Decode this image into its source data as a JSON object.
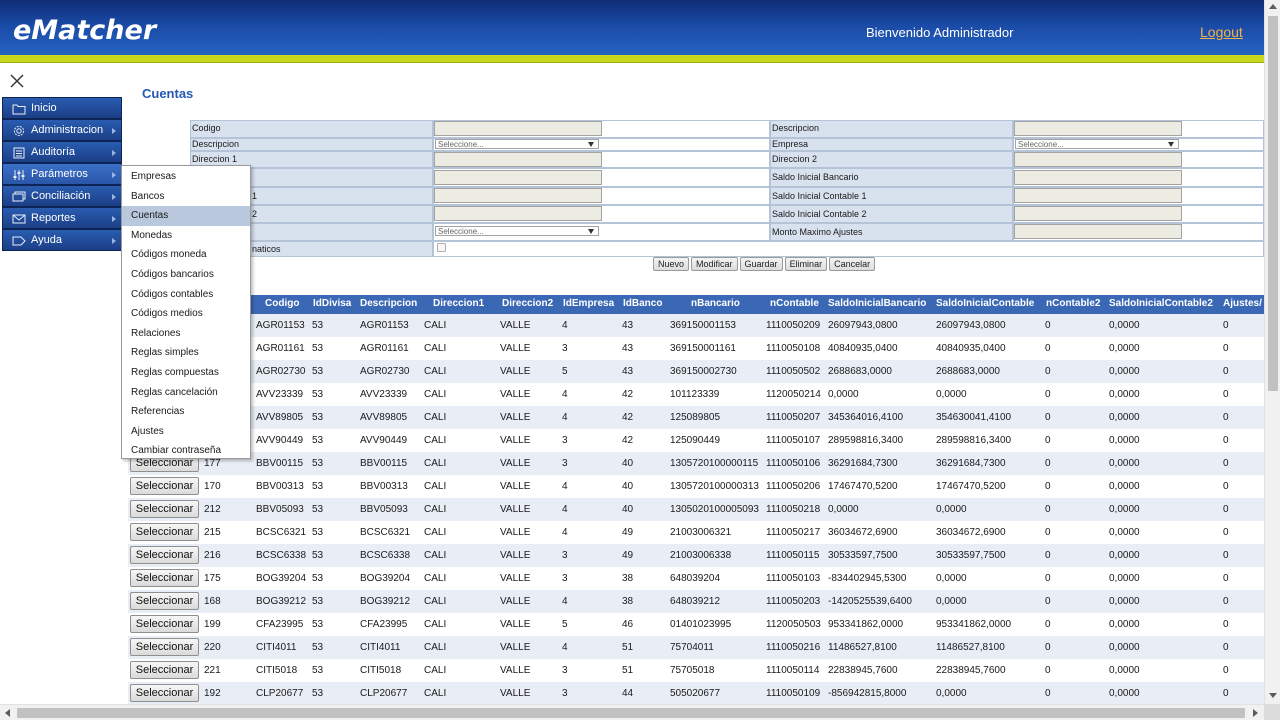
{
  "header": {
    "logo": "eMatcher",
    "welcome": "Bienvenido Administrador",
    "logout": "Logout"
  },
  "sidebar": {
    "items": [
      {
        "label": "Inicio",
        "icon": "folder-icon"
      },
      {
        "label": "Administracion",
        "icon": "gear-icon"
      },
      {
        "label": "Auditoría",
        "icon": "list-icon"
      },
      {
        "label": "Parámetros",
        "icon": "sliders-icon"
      },
      {
        "label": "Conciliación",
        "icon": "cards-icon"
      },
      {
        "label": "Reportes",
        "icon": "mail-icon"
      },
      {
        "label": "Ayuda",
        "icon": "tag-icon"
      }
    ]
  },
  "submenu": {
    "items": [
      "Empresas",
      "Bancos",
      "Cuentas",
      "Monedas",
      "Códigos moneda",
      "Códigos bancarios",
      "Códigos contables",
      "Códigos medios",
      "Relaciones",
      "Reglas simples",
      "Reglas compuestas",
      "Reglas cancelación",
      "Referencias",
      "Ajustes",
      "Cambiar contraseña"
    ],
    "selected": "Cuentas"
  },
  "page": {
    "title": "Cuentas"
  },
  "form": {
    "codigo": "Codigo",
    "descripcion": "Descripcion",
    "descripcion2": "Descripcion",
    "empresa": "Empresa",
    "direccion1": "Direccion 1",
    "direccion2": "Direccion 2",
    "saldo_inicial_bancario": "Saldo Inicial Bancario",
    "label_r5_tail": "1",
    "saldo_inicial_contable1": "Saldo Inicial Contable 1",
    "label_r6_tail": "2",
    "saldo_inicial_contable2": "Saldo Inicial Contable 2",
    "monto_maximo_ajustes": "Monto Maximo Ajustes",
    "label_r8_tail": "naticos",
    "select_placeholder": "Seleccione..."
  },
  "buttons": {
    "nuevo": "Nuevo",
    "modificar": "Modificar",
    "guardar": "Guardar",
    "eliminar": "Eliminar",
    "cancelar": "Cancelar",
    "seleccionar": "Seleccionar"
  },
  "grid": {
    "columns": [
      "Codigo",
      "IdDivisa",
      "Descripcion",
      "Direccion1",
      "Direccion2",
      "IdEmpresa",
      "IdBanco",
      "nBancario",
      "nContable",
      "SaldoInicialBancario",
      "SaldoInicialContable",
      "nContable2",
      "SaldoInicialContable2",
      "Ajustes/"
    ],
    "rows": [
      {
        "id": "",
        "codigo": "AGR01153",
        "divisa": "53",
        "desc": "AGR01153",
        "dir1": "CALI",
        "dir2": "VALLE",
        "emp": "4",
        "banco": "43",
        "nbanc": "369150001153",
        "ncont": "1110050209",
        "sib": "26097943,0800",
        "sic": "26097943,0800",
        "nc2": "0",
        "sic2": "0,0000",
        "aj": "0"
      },
      {
        "id": "",
        "codigo": "AGR01161",
        "divisa": "53",
        "desc": "AGR01161",
        "dir1": "CALI",
        "dir2": "VALLE",
        "emp": "3",
        "banco": "43",
        "nbanc": "369150001161",
        "ncont": "1110050108",
        "sib": "40840935,0400",
        "sic": "40840935,0400",
        "nc2": "0",
        "sic2": "0,0000",
        "aj": "0"
      },
      {
        "id": "",
        "codigo": "AGR02730",
        "divisa": "53",
        "desc": "AGR02730",
        "dir1": "CALI",
        "dir2": "VALLE",
        "emp": "5",
        "banco": "43",
        "nbanc": "369150002730",
        "ncont": "1110050502",
        "sib": "2688683,0000",
        "sic": "2688683,0000",
        "nc2": "0",
        "sic2": "0,0000",
        "aj": "0"
      },
      {
        "id": "",
        "codigo": "AVV23339",
        "divisa": "53",
        "desc": "AVV23339",
        "dir1": "CALI",
        "dir2": "VALLE",
        "emp": "4",
        "banco": "42",
        "nbanc": "101123339",
        "ncont": "1120050214",
        "sib": "0,0000",
        "sic": "0,0000",
        "nc2": "0",
        "sic2": "0,0000",
        "aj": "0"
      },
      {
        "id": "",
        "codigo": "AVV89805",
        "divisa": "53",
        "desc": "AVV89805",
        "dir1": "CALI",
        "dir2": "VALLE",
        "emp": "4",
        "banco": "42",
        "nbanc": "125089805",
        "ncont": "1110050207",
        "sib": "345364016,4100",
        "sic": "354630041,4100",
        "nc2": "0",
        "sic2": "0,0000",
        "aj": "0"
      },
      {
        "id": "",
        "codigo": "AVV90449",
        "divisa": "53",
        "desc": "AVV90449",
        "dir1": "CALI",
        "dir2": "VALLE",
        "emp": "3",
        "banco": "42",
        "nbanc": "125090449",
        "ncont": "1110050107",
        "sib": "289598816,3400",
        "sic": "289598816,3400",
        "nc2": "0",
        "sic2": "0,0000",
        "aj": "0"
      },
      {
        "id": "177",
        "codigo": "BBV00115",
        "divisa": "53",
        "desc": "BBV00115",
        "dir1": "CALI",
        "dir2": "VALLE",
        "emp": "3",
        "banco": "40",
        "nbanc": "1305720100000115",
        "ncont": "1110050106",
        "sib": "36291684,7300",
        "sic": "36291684,7300",
        "nc2": "0",
        "sic2": "0,0000",
        "aj": "0"
      },
      {
        "id": "170",
        "codigo": "BBV00313",
        "divisa": "53",
        "desc": "BBV00313",
        "dir1": "CALI",
        "dir2": "VALLE",
        "emp": "4",
        "banco": "40",
        "nbanc": "1305720100000313",
        "ncont": "1110050206",
        "sib": "17467470,5200",
        "sic": "17467470,5200",
        "nc2": "0",
        "sic2": "0,0000",
        "aj": "0"
      },
      {
        "id": "212",
        "codigo": "BBV05093",
        "divisa": "53",
        "desc": "BBV05093",
        "dir1": "CALI",
        "dir2": "VALLE",
        "emp": "4",
        "banco": "40",
        "nbanc": "1305020100005093",
        "ncont": "1110050218",
        "sib": "0,0000",
        "sic": "0,0000",
        "nc2": "0",
        "sic2": "0,0000",
        "aj": "0"
      },
      {
        "id": "215",
        "codigo": "BCSC6321",
        "divisa": "53",
        "desc": "BCSC6321",
        "dir1": "CALI",
        "dir2": "VALLE",
        "emp": "4",
        "banco": "49",
        "nbanc": "21003006321",
        "ncont": "1110050217",
        "sib": "36034672,6900",
        "sic": "36034672,6900",
        "nc2": "0",
        "sic2": "0,0000",
        "aj": "0"
      },
      {
        "id": "216",
        "codigo": "BCSC6338",
        "divisa": "53",
        "desc": "BCSC6338",
        "dir1": "CALI",
        "dir2": "VALLE",
        "emp": "3",
        "banco": "49",
        "nbanc": "21003006338",
        "ncont": "1110050115",
        "sib": "30533597,7500",
        "sic": "30533597,7500",
        "nc2": "0",
        "sic2": "0,0000",
        "aj": "0"
      },
      {
        "id": "175",
        "codigo": "BOG39204",
        "divisa": "53",
        "desc": "BOG39204",
        "dir1": "CALI",
        "dir2": "VALLE",
        "emp": "3",
        "banco": "38",
        "nbanc": "648039204",
        "ncont": "1110050103",
        "sib": "-834402945,5300",
        "sic": "0,0000",
        "nc2": "0",
        "sic2": "0,0000",
        "aj": "0"
      },
      {
        "id": "168",
        "codigo": "BOG39212",
        "divisa": "53",
        "desc": "BOG39212",
        "dir1": "CALI",
        "dir2": "VALLE",
        "emp": "4",
        "banco": "38",
        "nbanc": "648039212",
        "ncont": "1110050203",
        "sib": "-1420525539,6400",
        "sic": "0,0000",
        "nc2": "0",
        "sic2": "0,0000",
        "aj": "0"
      },
      {
        "id": "199",
        "codigo": "CFA23995",
        "divisa": "53",
        "desc": "CFA23995",
        "dir1": "CALI",
        "dir2": "VALLE",
        "emp": "5",
        "banco": "46",
        "nbanc": "01401023995",
        "ncont": "1120050503",
        "sib": "953341862,0000",
        "sic": "953341862,0000",
        "nc2": "0",
        "sic2": "0,0000",
        "aj": "0"
      },
      {
        "id": "220",
        "codigo": "CITI4011",
        "divisa": "53",
        "desc": "CITI4011",
        "dir1": "CALI",
        "dir2": "VALLE",
        "emp": "4",
        "banco": "51",
        "nbanc": "75704011",
        "ncont": "1110050216",
        "sib": "11486527,8100",
        "sic": "11486527,8100",
        "nc2": "0",
        "sic2": "0,0000",
        "aj": "0"
      },
      {
        "id": "221",
        "codigo": "CITI5018",
        "divisa": "53",
        "desc": "CITI5018",
        "dir1": "CALI",
        "dir2": "VALLE",
        "emp": "3",
        "banco": "51",
        "nbanc": "75705018",
        "ncont": "1110050114",
        "sib": "22838945,7600",
        "sic": "22838945,7600",
        "nc2": "0",
        "sic2": "0,0000",
        "aj": "0"
      },
      {
        "id": "192",
        "codigo": "CLP20677",
        "divisa": "53",
        "desc": "CLP20677",
        "dir1": "CALI",
        "dir2": "VALLE",
        "emp": "3",
        "banco": "44",
        "nbanc": "505020677",
        "ncont": "1110050109",
        "sib": "-856942815,8000",
        "sic": "0,0000",
        "nc2": "0",
        "sic2": "0,0000",
        "aj": "0"
      }
    ]
  }
}
